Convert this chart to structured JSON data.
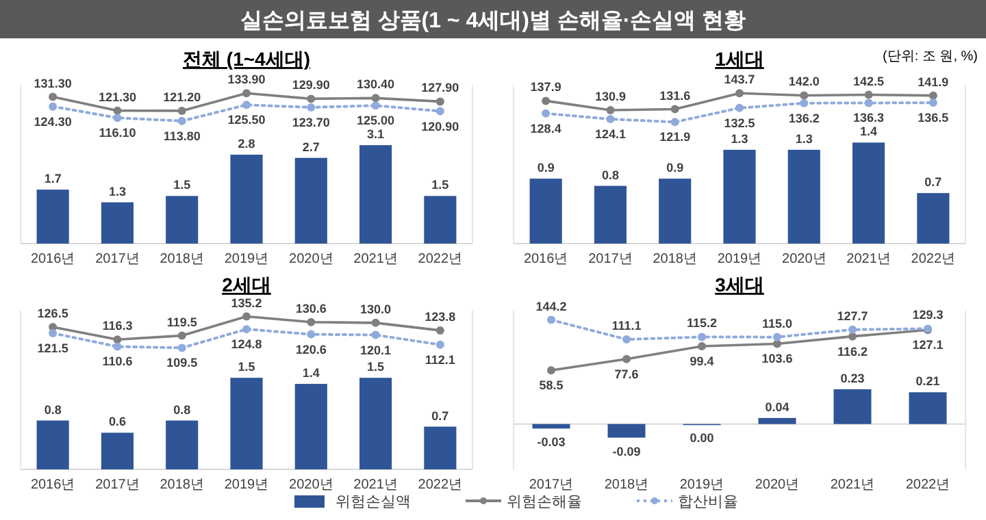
{
  "chart_data": [
    {
      "type": "bar",
      "title": "실손의료보험 상품(1 ~ 4세대)별 손해율·손실액 현황",
      "subtitle": "전체 (1~4세대)",
      "ylim": [
        0,
        5
      ],
      "y2lim": [
        25,
        140
      ],
      "categories": [
        "2016년",
        "2017년",
        "2018년",
        "2019년",
        "2020년",
        "2021년",
        "2022년"
      ],
      "tick_labels": "x",
      "series": [
        {
          "color": "#2f5597",
          "values": [
            1.7,
            1.3,
            1.5,
            2.8,
            2.7,
            3.1,
            1.5
          ],
          "value_labels": [
            "1.7",
            "1.3",
            "1.5",
            "2.8",
            "2.7",
            "3.1",
            "1.5"
          ]
        },
        {
          "type": "line",
          "axis": "y2",
          "color": "#7f7f7f",
          "marker": "circle",
          "line_style": "solid",
          "values": [
            131.3,
            121.3,
            121.2,
            133.9,
            129.9,
            130.4,
            127.9
          ],
          "value_labels": [
            "131.30",
            "121.30",
            "121.20",
            "133.90",
            "129.90",
            "130.40",
            "127.90"
          ]
        },
        {
          "type": "line",
          "axis": "y2",
          "color": "#8faadc",
          "marker": "circle",
          "line_style": "dotted",
          "values": [
            124.3,
            116.1,
            113.8,
            125.5,
            123.7,
            125.0,
            120.9
          ],
          "value_labels": [
            "124.30",
            "116.10",
            "113.80",
            "125.50",
            "123.70",
            "125.00",
            "120.90"
          ]
        }
      ]
    },
    {
      "type": "bar",
      "title": "1세대",
      "ylim": [
        0,
        2.2
      ],
      "y2lim": [
        30,
        150
      ],
      "annotations": [
        "(단위: 조 원, %)"
      ],
      "categories": [
        "2016년",
        "2017년",
        "2018년",
        "2019년",
        "2020년",
        "2021년",
        "2022년"
      ],
      "tick_labels": "x",
      "series": [
        {
          "color": "#2f5597",
          "values": [
            0.9,
            0.8,
            0.9,
            1.3,
            1.3,
            1.4,
            0.7
          ],
          "value_labels": [
            "0.9",
            "0.8",
            "0.9",
            "1.3",
            "1.3",
            "1.4",
            "0.7"
          ]
        },
        {
          "type": "line",
          "axis": "y2",
          "color": "#7f7f7f",
          "marker": "circle",
          "line_style": "solid",
          "values": [
            137.9,
            130.9,
            131.6,
            143.7,
            142.0,
            142.5,
            141.9
          ],
          "value_labels": [
            "137.9",
            "130.9",
            "131.6",
            "143.7",
            "142.0",
            "142.5",
            "141.9"
          ]
        },
        {
          "type": "line",
          "axis": "y2",
          "color": "#8faadc",
          "marker": "circle",
          "line_style": "dotted",
          "values": [
            128.4,
            124.1,
            121.9,
            132.5,
            136.2,
            136.3,
            136.5
          ],
          "value_labels": [
            "128.4",
            "124.1",
            "121.9",
            "132.5",
            "136.2",
            "136.3",
            "136.5"
          ]
        }
      ]
    },
    {
      "type": "bar",
      "title": "2세대",
      "ylim": [
        0,
        2.6
      ],
      "y2lim": [
        10,
        140
      ],
      "categories": [
        "2016년",
        "2017년",
        "2018년",
        "2019년",
        "2020년",
        "2021년",
        "2022년"
      ],
      "tick_labels": "x",
      "legend": "bottom",
      "series": [
        {
          "name": "위험손실액",
          "color": "#2f5597",
          "values": [
            0.8,
            0.6,
            0.8,
            1.5,
            1.4,
            1.5,
            0.7
          ],
          "value_labels": [
            "0.8",
            "0.6",
            "0.8",
            "1.5",
            "1.4",
            "1.5",
            "0.7"
          ]
        },
        {
          "name": "위험손해율",
          "type": "line",
          "axis": "y2",
          "color": "#7f7f7f",
          "marker": "circle",
          "line_style": "solid",
          "values": [
            126.5,
            116.3,
            119.5,
            135.2,
            130.6,
            130.0,
            123.8
          ],
          "value_labels": [
            "126.5",
            "116.3",
            "119.5",
            "135.2",
            "130.6",
            "130.0",
            "123.8"
          ]
        },
        {
          "name": "합산비율",
          "type": "line",
          "axis": "y2",
          "color": "#8faadc",
          "marker": "circle",
          "line_style": "dotted",
          "values": [
            121.5,
            110.6,
            109.5,
            124.8,
            120.6,
            120.1,
            112.1
          ],
          "value_labels": [
            "121.5",
            "110.6",
            "109.5",
            "124.8",
            "120.6",
            "120.1",
            "112.1"
          ]
        }
      ]
    },
    {
      "type": "bar",
      "title": "3세대",
      "ylim": [
        -0.3,
        0.75
      ],
      "y2lim": [
        -110,
        160
      ],
      "categories": [
        "2017년",
        "2018년",
        "2019년",
        "2020년",
        "2021년",
        "2022년"
      ],
      "tick_labels": "x",
      "series": [
        {
          "color": "#2f5597",
          "values": [
            -0.03,
            -0.09,
            0.0,
            0.04,
            0.23,
            0.21
          ],
          "value_labels": [
            "-0.03",
            "-0.09",
            "0.00",
            "0.04",
            "0.23",
            "0.21"
          ]
        },
        {
          "type": "line",
          "axis": "y2",
          "color": "#7f7f7f",
          "marker": "circle",
          "line_style": "solid",
          "values": [
            58.5,
            77.6,
            99.4,
            103.6,
            116.2,
            127.1
          ],
          "value_labels": [
            "58.5",
            "77.6",
            "99.4",
            "103.6",
            "116.2",
            "127.1"
          ]
        },
        {
          "type": "line",
          "axis": "y2",
          "color": "#8faadc",
          "marker": "circle",
          "line_style": "dotted",
          "values": [
            144.2,
            111.1,
            115.2,
            115.0,
            127.7,
            129.3
          ],
          "value_labels": [
            "144.2",
            "111.1",
            "115.2",
            "115.0",
            "127.7",
            "129.3"
          ]
        }
      ]
    }
  ]
}
